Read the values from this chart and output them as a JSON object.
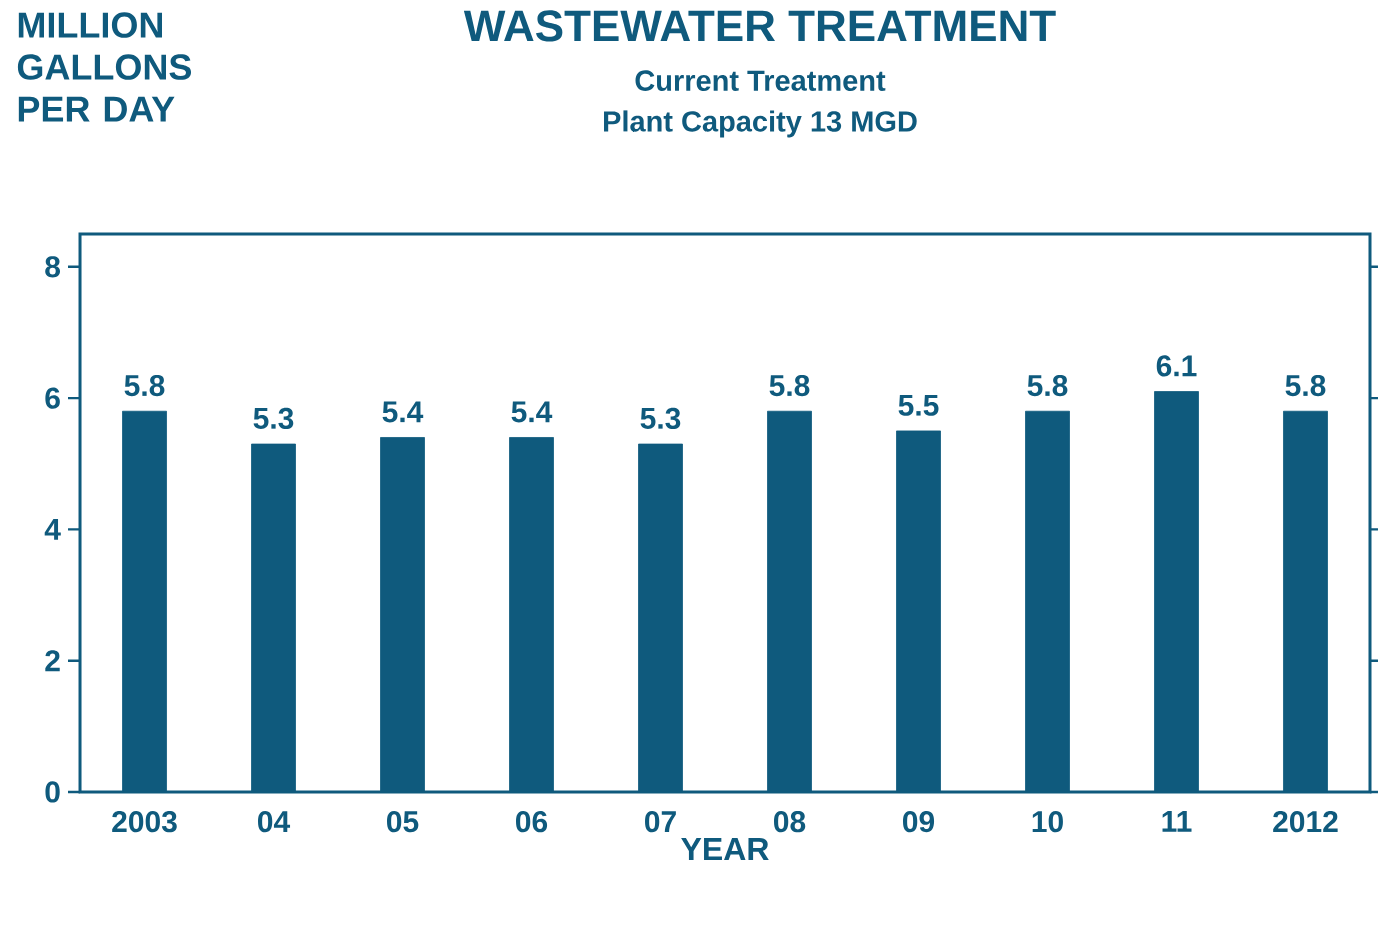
{
  "chart_data": {
    "type": "bar",
    "title": "WASTEWATER TREATMENT",
    "subtitle": "Current Treatment",
    "annotations": [
      "Plant Capacity 13 MGD"
    ],
    "ylabel": "MILLION GALLONS PER DAY",
    "xlabel": "YEAR",
    "categories": [
      "2003",
      "04",
      "05",
      "06",
      "07",
      "08",
      "09",
      "10",
      "11",
      "2012"
    ],
    "values": [
      5.8,
      5.3,
      5.4,
      5.4,
      5.3,
      5.8,
      5.5,
      5.8,
      6.1,
      5.8
    ],
    "value_labels": [
      "5.8",
      "5.3",
      "5.4",
      "5.4",
      "5.3",
      "5.8",
      "5.5",
      "5.8",
      "6.1",
      "5.8"
    ],
    "color": "#0f5a7d",
    "ylim": [
      0,
      8.5
    ],
    "yticks": [
      0,
      2,
      4,
      6,
      8
    ],
    "grid": false
  }
}
